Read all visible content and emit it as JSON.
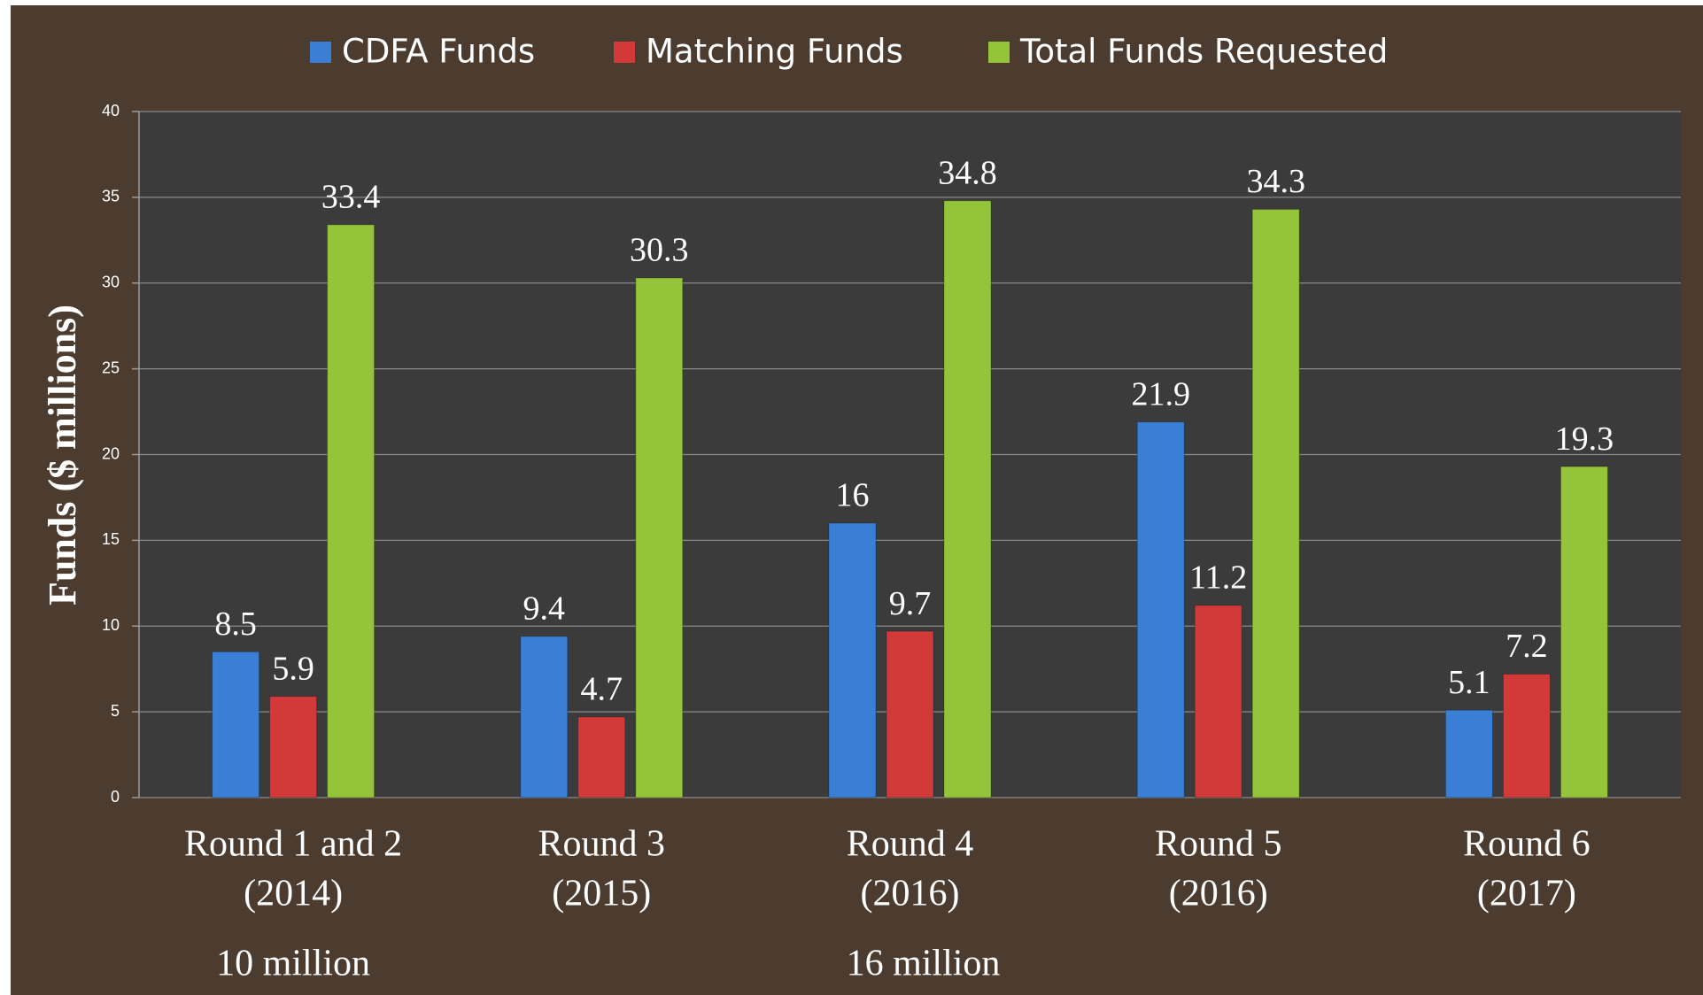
{
  "chart_data": {
    "type": "bar",
    "y_label": "Funds ($ millions)",
    "categories": [
      [
        "Round 1 and 2",
        "(2014)"
      ],
      [
        "Round 3",
        "(2015)"
      ],
      [
        "Round 4",
        "(2016)"
      ],
      [
        "Round 5",
        "(2016)"
      ],
      [
        "Round 6",
        "(2017)"
      ]
    ],
    "series": [
      {
        "name": "CDFA Funds",
        "color": "#3a7fd5",
        "values": [
          8.5,
          9.4,
          16,
          21.9,
          5.1
        ]
      },
      {
        "name": "Matching Funds",
        "color": "#d23a3a",
        "values": [
          5.9,
          4.7,
          9.7,
          11.2,
          7.2
        ]
      },
      {
        "name": "Total Funds Requested",
        "color": "#94c43a",
        "values": [
          33.4,
          30.3,
          34.8,
          34.3,
          19.3
        ]
      }
    ],
    "annotations": [
      {
        "text": "10 million",
        "category": 0
      },
      {
        "text": "16 million",
        "category": 2
      }
    ],
    "ylim": [
      0,
      40
    ],
    "yticks": [
      0,
      5,
      10,
      15,
      20,
      25,
      30,
      35,
      40
    ],
    "grid": true,
    "legend": "top"
  }
}
